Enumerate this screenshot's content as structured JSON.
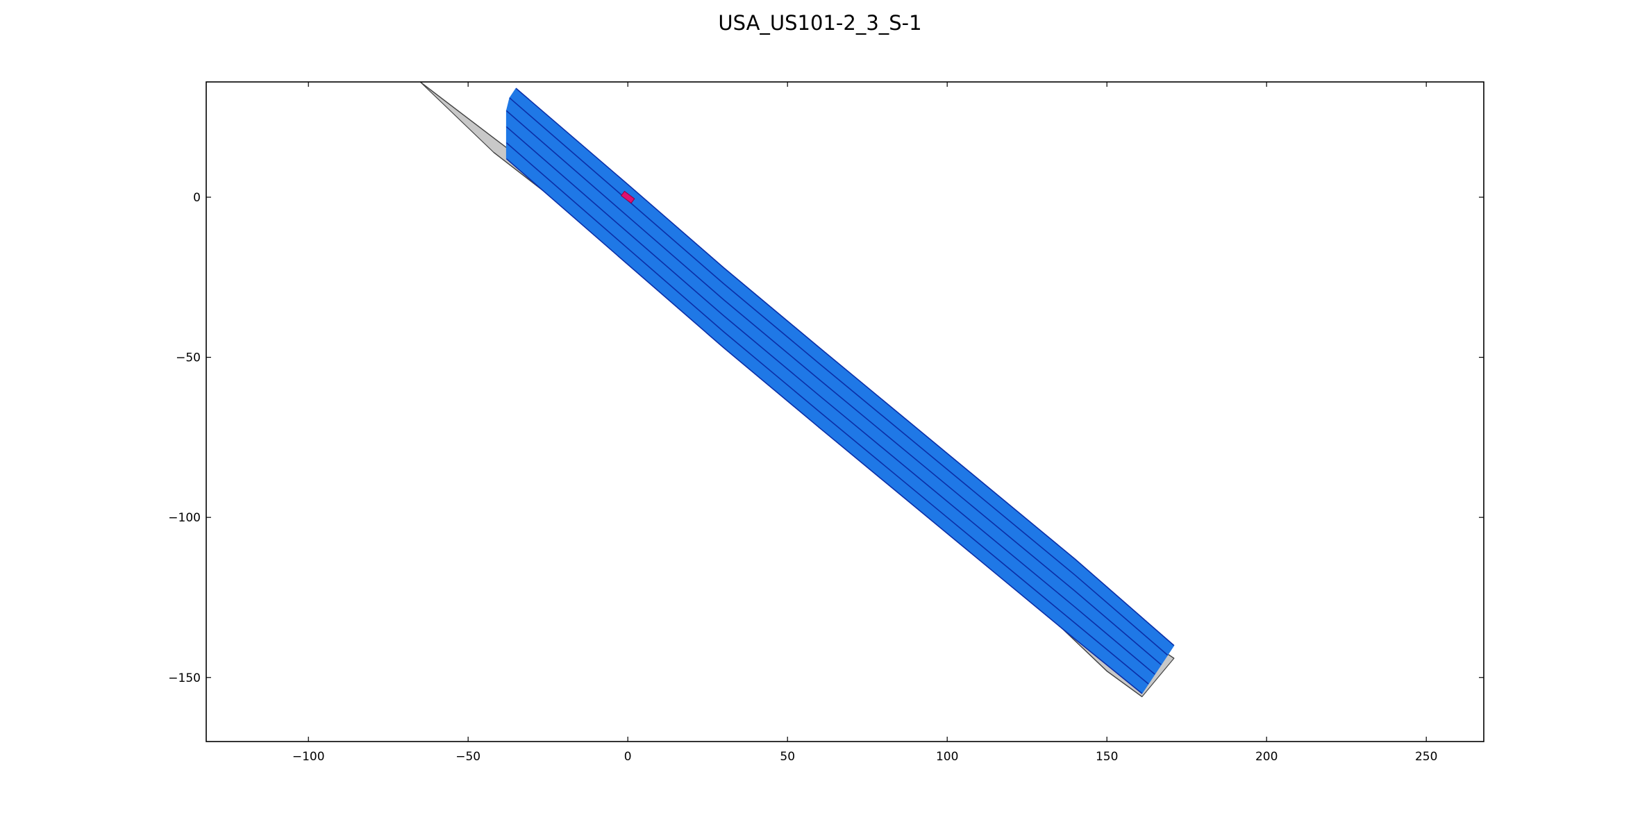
{
  "chart_data": {
    "type": "line",
    "title": "USA_US101-2_3_S-1",
    "xlabel": "",
    "ylabel": "",
    "xlim": [
      -132,
      268
    ],
    "ylim": [
      -170,
      36
    ],
    "x_ticks": [
      -100,
      -50,
      0,
      50,
      100,
      150,
      200,
      250
    ],
    "x_tick_labels": [
      "−100",
      "−50",
      "0",
      "50",
      "100",
      "150",
      "200",
      "250"
    ],
    "y_ticks": [
      0,
      -50,
      -100,
      -150
    ],
    "y_tick_labels": [
      "0",
      "−50",
      "−100",
      "−150"
    ],
    "grid": false,
    "legend": "none",
    "colors": {
      "road_surface": "#c8c8c8",
      "lane_fill": "#1f78e6",
      "lane_line": "#0b2fa8",
      "boundary": "#444444",
      "ego_vehicle": "#e01070"
    },
    "lanelet_boundaries": [
      {
        "name": "edge-north",
        "x": [
          -65,
          -40,
          -20,
          0,
          30,
          60,
          100,
          140,
          171
        ],
        "y": [
          36,
          17,
          2,
          -13,
          -38,
          -63,
          -95,
          -123,
          -144
        ]
      },
      {
        "name": "edge-south",
        "x": [
          -42,
          -20,
          0,
          30,
          60,
          100,
          130,
          150,
          161
        ],
        "y": [
          14,
          -3,
          -20,
          -45,
          -72,
          -104,
          -129,
          -148,
          -156
        ]
      }
    ],
    "lanes": [
      {
        "x": [
          -35,
          0,
          30,
          60,
          100,
          140,
          171
        ],
        "y": [
          34,
          4,
          -22,
          -47,
          -80,
          -113,
          -140
        ]
      },
      {
        "x": [
          -37,
          0,
          30,
          60,
          100,
          140,
          169
        ],
        "y": [
          31,
          -1,
          -27,
          -52,
          -85,
          -118,
          -143
        ]
      },
      {
        "x": [
          -38,
          0,
          30,
          60,
          100,
          140,
          167
        ],
        "y": [
          27,
          -6,
          -32,
          -57,
          -90,
          -123,
          -146
        ]
      },
      {
        "x": [
          -38,
          0,
          30,
          60,
          100,
          140,
          165
        ],
        "y": [
          22,
          -11,
          -37,
          -62,
          -95,
          -128,
          -149
        ]
      },
      {
        "x": [
          -38,
          0,
          30,
          60,
          100,
          140,
          163
        ],
        "y": [
          17,
          -16,
          -42,
          -67,
          -100,
          -133,
          -152
        ]
      },
      {
        "x": [
          -38,
          0,
          30,
          60,
          100,
          140,
          161
        ],
        "y": [
          12,
          -21,
          -47,
          -72,
          -105,
          -138,
          -155
        ]
      }
    ],
    "ego_vehicle": {
      "x": 0,
      "y": 0
    }
  }
}
